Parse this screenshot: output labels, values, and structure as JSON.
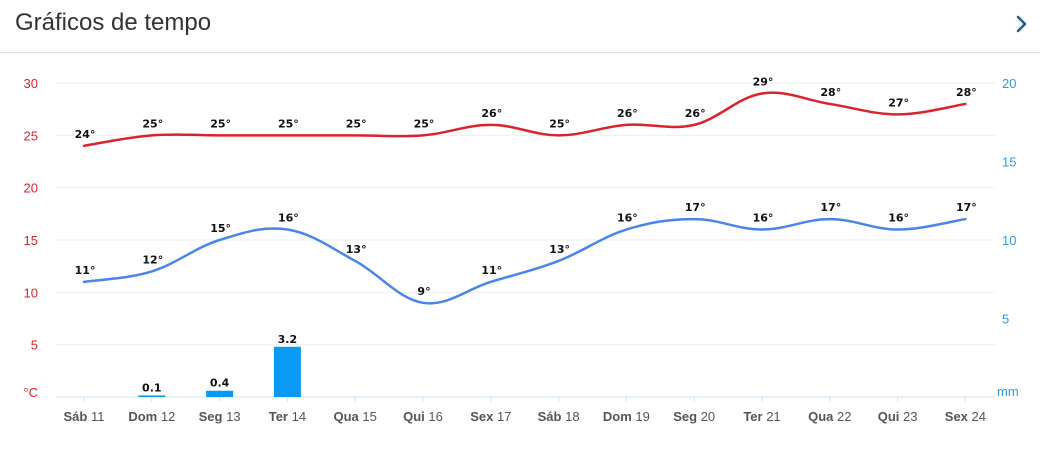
{
  "header": {
    "title": "Gráficos de tempo",
    "chevron_icon": "chevron-right-icon"
  },
  "colors": {
    "max": "#d9232d",
    "min": "#4a86e8",
    "rain": "#0a9af5",
    "grid": "#eeeeee"
  },
  "chart_data": {
    "type": "line",
    "categories": [
      {
        "day": "Sáb",
        "num": "11"
      },
      {
        "day": "Dom",
        "num": "12"
      },
      {
        "day": "Seg",
        "num": "13"
      },
      {
        "day": "Ter",
        "num": "14"
      },
      {
        "day": "Qua",
        "num": "15"
      },
      {
        "day": "Qui",
        "num": "16"
      },
      {
        "day": "Sex",
        "num": "17"
      },
      {
        "day": "Sáb",
        "num": "18"
      },
      {
        "day": "Dom",
        "num": "19"
      },
      {
        "day": "Seg",
        "num": "20"
      },
      {
        "day": "Ter",
        "num": "21"
      },
      {
        "day": "Qua",
        "num": "22"
      },
      {
        "day": "Qui",
        "num": "23"
      },
      {
        "day": "Sex",
        "num": "24"
      }
    ],
    "series": [
      {
        "values": [
          24,
          25,
          25,
          25,
          25,
          25,
          26,
          25,
          26,
          26,
          29,
          28,
          27,
          28
        ],
        "axis": "left"
      },
      {
        "values": [
          11,
          12,
          15,
          16,
          13,
          9,
          11,
          13,
          16,
          17,
          16,
          17,
          16,
          17
        ],
        "axis": "left"
      }
    ],
    "bars": {
      "values": [
        null,
        0.1,
        0.4,
        3.2,
        null,
        null,
        null,
        null,
        null,
        null,
        null,
        null,
        null,
        null
      ],
      "labels": [
        "",
        "0.1",
        "0.4",
        "3.2",
        "",
        "",
        "",
        "",
        "",
        "",
        "",
        "",
        "",
        ""
      ]
    },
    "left_axis": {
      "unit": "°C",
      "ticks": [
        "30",
        "25",
        "20",
        "15",
        "10",
        "5"
      ],
      "ylim": [
        0,
        30
      ]
    },
    "right_axis": {
      "unit": "mm",
      "ticks": [
        "20",
        "15",
        "10",
        "5"
      ],
      "ylim": [
        0,
        20
      ]
    },
    "label_suffix": "°",
    "grid": true
  }
}
